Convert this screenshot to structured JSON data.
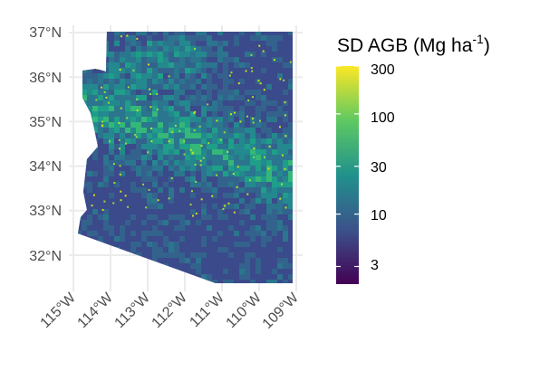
{
  "map": {
    "title": "",
    "lat_labels": [
      "37°N",
      "36°N",
      "35°N",
      "34°N",
      "33°N",
      "32°N"
    ],
    "lat_values": [
      37,
      36,
      35,
      34,
      33,
      32
    ],
    "lon_labels": [
      "115°W",
      "114°W",
      "113°W",
      "112°W",
      "111°W",
      "110°W",
      "109°W"
    ],
    "lon_values": [
      -115,
      -114,
      -113,
      -112,
      -111,
      -110,
      -109
    ],
    "region": "Arizona",
    "grid": true
  },
  "legend": {
    "title_main": "SD AGB (Mg ha",
    "title_sup": "-1",
    "title_close": ")",
    "scale": "log",
    "tick_labels": [
      "300",
      "100",
      "30",
      "10",
      "3"
    ],
    "tick_values": [
      300,
      100,
      30,
      10,
      3
    ],
    "range": [
      2,
      300
    ],
    "placement": "right",
    "colormap": "viridis",
    "colors": [
      "#440154",
      "#3b528b",
      "#21918c",
      "#5ec962",
      "#fde725"
    ]
  }
}
